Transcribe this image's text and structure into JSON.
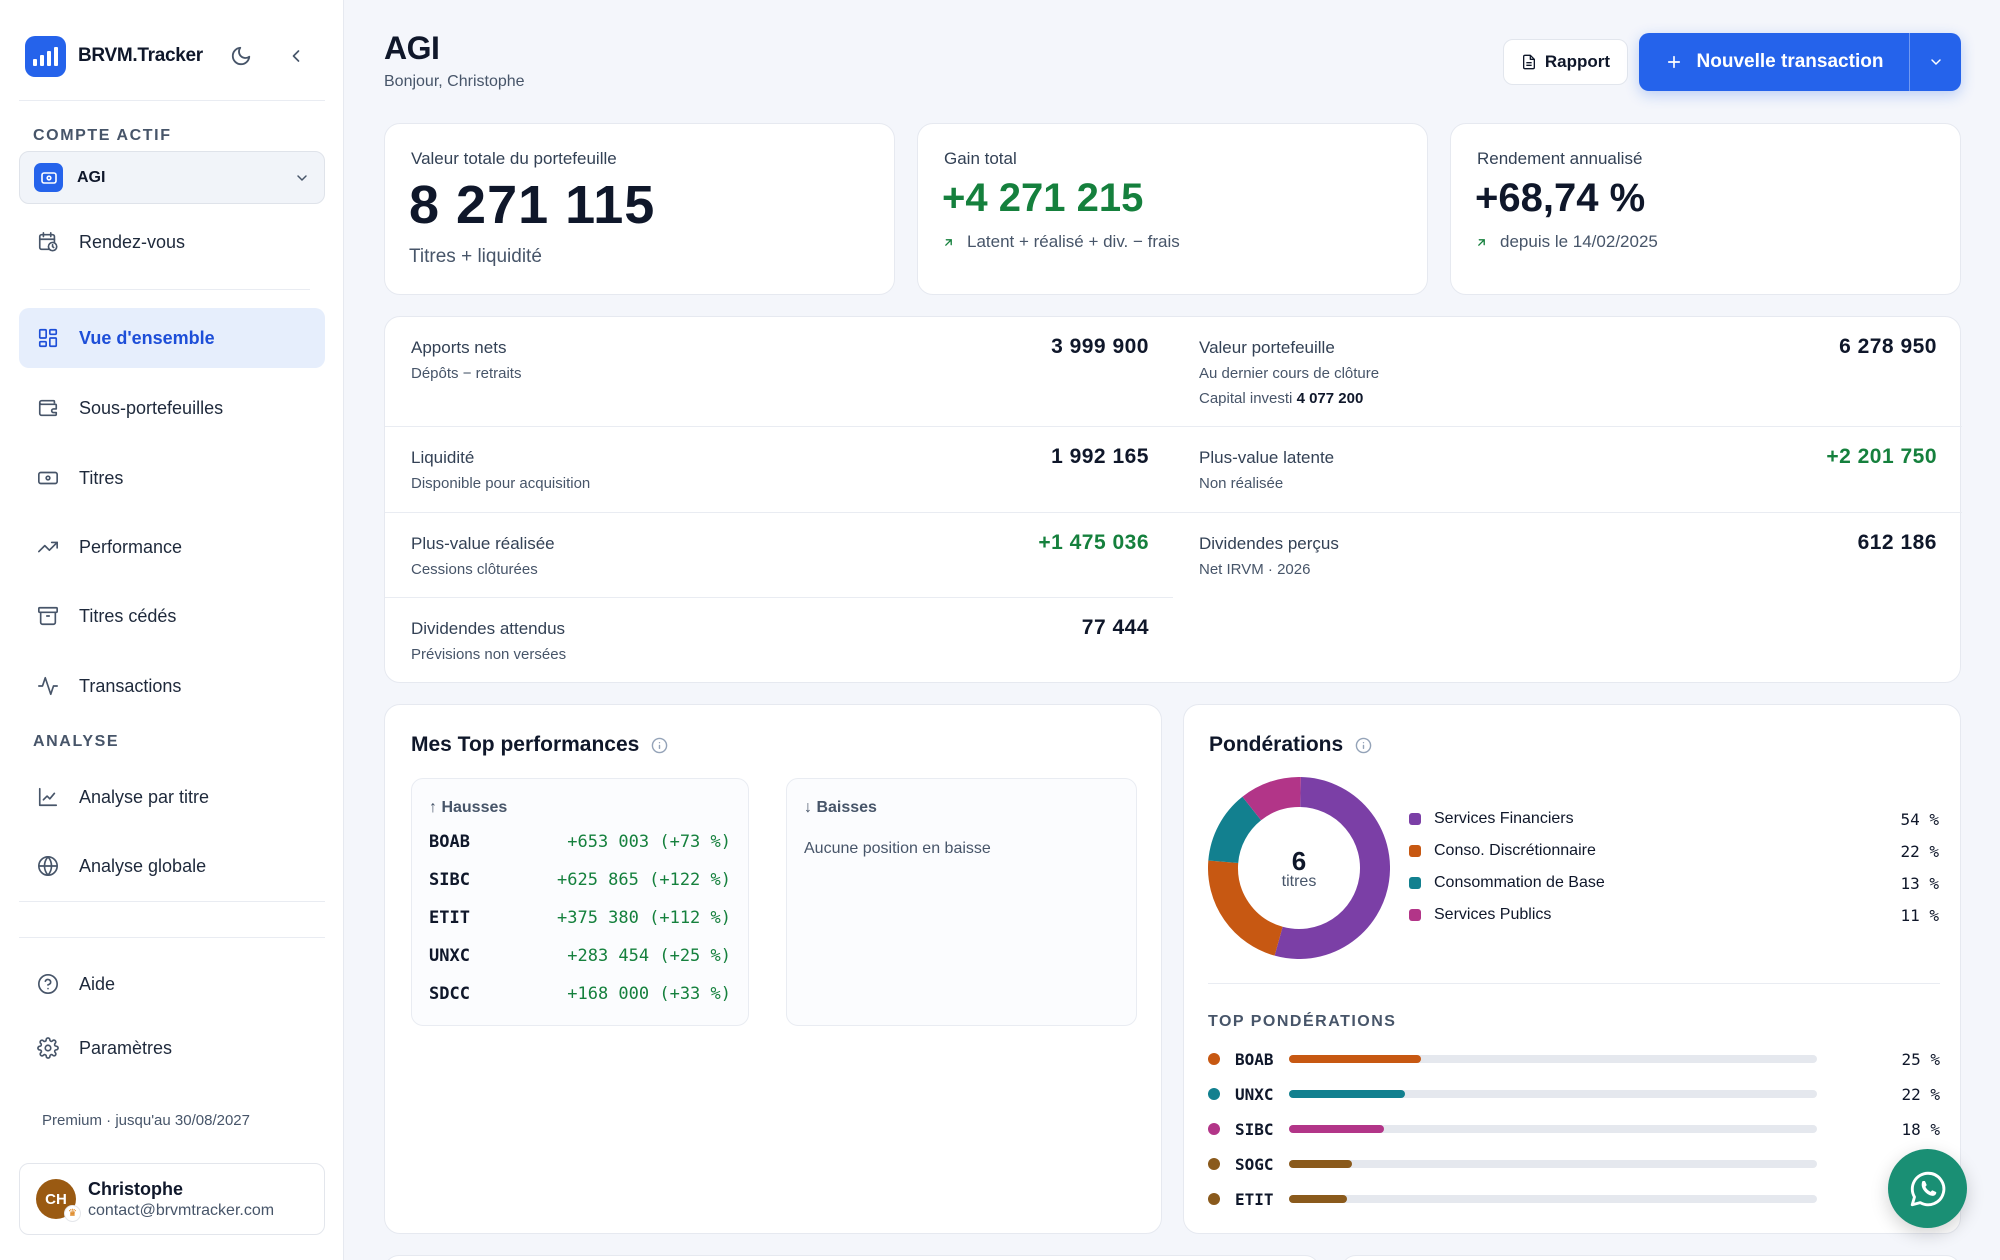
{
  "brand": {
    "name": "BRVM.Tracker"
  },
  "sidebar": {
    "account_section": "COMPTE ACTIF",
    "account_name": "AGI",
    "rendezvous": "Rendez-vous",
    "main_nav": [
      {
        "label": "Vue d'ensemble",
        "icon": "grid-icon",
        "active": true
      },
      {
        "label": "Sous-portefeuilles",
        "icon": "wallet-icon"
      },
      {
        "label": "Titres",
        "icon": "banknote-icon"
      },
      {
        "label": "Performance",
        "icon": "trending-up-icon"
      },
      {
        "label": "Titres cédés",
        "icon": "archive-icon"
      },
      {
        "label": "Transactions",
        "icon": "activity-icon"
      }
    ],
    "analysis_section": "ANALYSE",
    "analysis_nav": [
      {
        "label": "Analyse par titre",
        "icon": "line-chart-icon"
      },
      {
        "label": "Analyse globale",
        "icon": "globe-icon"
      }
    ],
    "help": "Aide",
    "settings": "Paramètres",
    "premium": "Premium · jusqu'au 30/08/2027",
    "user": {
      "initials": "CH",
      "name": "Christophe",
      "email": "contact@brvmtracker.com"
    }
  },
  "header": {
    "title": "AGI",
    "greeting": "Bonjour, Christophe",
    "report_button": "Rapport",
    "new_transaction_button": "Nouvelle transaction"
  },
  "kpis": {
    "total": {
      "label": "Valeur totale du portefeuille",
      "value": "8 271 115",
      "sub": "Titres + liquidité"
    },
    "gain": {
      "label": "Gain total",
      "value": "+4 271 215",
      "note": "Latent + réalisé + div. − frais"
    },
    "yield": {
      "label": "Rendement annualisé",
      "value": "+68,74 %",
      "note": "depuis le 14/02/2025"
    }
  },
  "metrics": {
    "apports": {
      "label": "Apports nets",
      "sub": "Dépôts − retraits",
      "value": "3 999 900"
    },
    "valeur": {
      "label": "Valeur portefeuille",
      "sub": "Au dernier cours de clôture",
      "sub2_label": "Capital investi",
      "sub2_value": "4 077 200",
      "value": "6 278 950"
    },
    "liquidite": {
      "label": "Liquidité",
      "sub": "Disponible pour acquisition",
      "value": "1 992 165"
    },
    "latente": {
      "label": "Plus-value latente",
      "sub": "Non réalisée",
      "value": "+2 201 750"
    },
    "realisee": {
      "label": "Plus-value réalisée",
      "sub": "Cessions clôturées",
      "value": "+1 475 036"
    },
    "dividendes": {
      "label": "Dividendes perçus",
      "sub": "Net IRVM · 2026",
      "value": "612 186"
    },
    "attendus": {
      "label": "Dividendes attendus",
      "sub": "Prévisions non versées",
      "value": "77 444"
    }
  },
  "top_performances": {
    "title": "Mes Top performances",
    "gains_title": "↑ Hausses",
    "losses_title": "↓ Baisses",
    "gains": [
      {
        "ticker": "BOAB",
        "value": "+653 003 (+73 %)"
      },
      {
        "ticker": "SIBC",
        "value": "+625 865 (+122 %)"
      },
      {
        "ticker": "ETIT",
        "value": "+375 380 (+112 %)"
      },
      {
        "ticker": "UNXC",
        "value": "+283 454 (+25 %)"
      },
      {
        "ticker": "SDCC",
        "value": "+168 000 (+33 %)"
      }
    ],
    "losses_empty": "Aucune position en baisse"
  },
  "ponderations": {
    "title": "Pondérations",
    "center_value": "6",
    "center_label": "titres",
    "sectors": [
      {
        "name": "Services Financiers",
        "pct": "54 %",
        "value": 54,
        "color": "#7b3fa6"
      },
      {
        "name": "Conso. Discrétionnaire",
        "pct": "22 %",
        "value": 22,
        "color": "#c75812"
      },
      {
        "name": "Consommation de Base",
        "pct": "13 %",
        "value": 13,
        "color": "#12808f"
      },
      {
        "name": "Services Publics",
        "pct": "11 %",
        "value": 11,
        "color": "#b23588"
      }
    ],
    "top_title": "TOP PONDÉRATIONS",
    "top": [
      {
        "ticker": "BOAB",
        "pct": "25 %",
        "value": 25,
        "color": "#c75812"
      },
      {
        "ticker": "UNXC",
        "pct": "22 %",
        "value": 22,
        "color": "#12808f"
      },
      {
        "ticker": "SIBC",
        "pct": "18 %",
        "value": 18,
        "color": "#b23588"
      },
      {
        "ticker": "SOGC",
        "pct": "",
        "value": 12,
        "color": "#8a5a1c"
      },
      {
        "ticker": "ETIT",
        "pct": "",
        "value": 11,
        "color": "#8a5a1c"
      }
    ]
  }
}
